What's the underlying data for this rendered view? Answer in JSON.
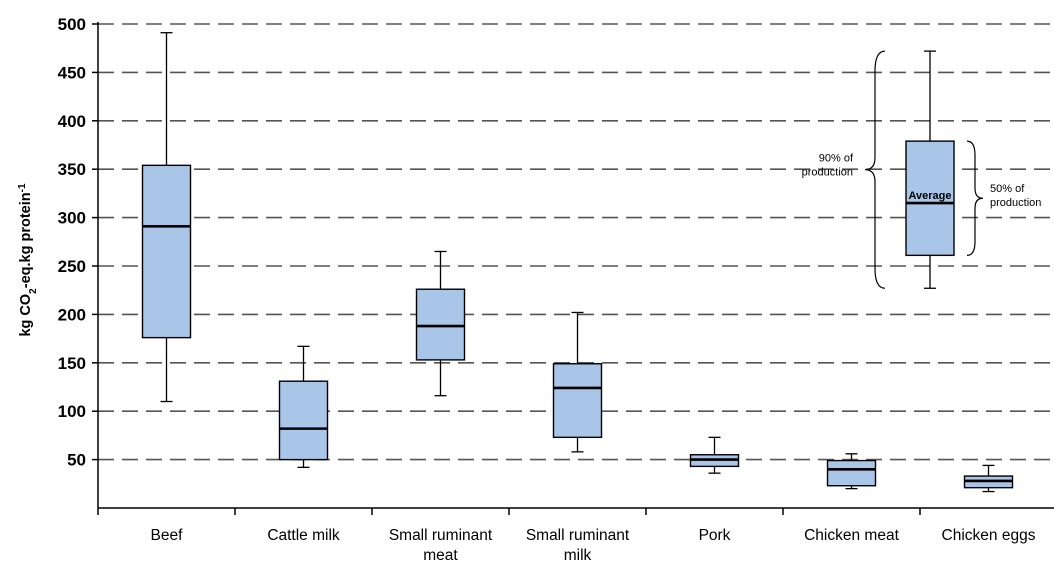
{
  "chart_data": {
    "type": "box",
    "ylabel": "kg CO2-eq.kg protein-1",
    "ylabel_parts": {
      "a": "kg CO",
      "sub": "2",
      "b": "-eq.kg protein",
      "sup": "-1"
    },
    "ylim": [
      0,
      500
    ],
    "yticks": [
      50,
      100,
      150,
      200,
      250,
      300,
      350,
      400,
      450,
      500
    ],
    "grid": "horizontal dashed",
    "categories": [
      [
        "Beef"
      ],
      [
        "Cattle milk"
      ],
      [
        "Small ruminant",
        "meat"
      ],
      [
        "Small ruminant",
        "milk"
      ],
      [
        "Pork"
      ],
      [
        "Chicken meat"
      ],
      [
        "Chicken eggs"
      ]
    ],
    "boxes": [
      {
        "low": 110,
        "q1": 176,
        "median": 291,
        "q3": 354,
        "high": 491
      },
      {
        "low": 42,
        "q1": 50,
        "median": 82,
        "q3": 131,
        "high": 167
      },
      {
        "low": 116,
        "q1": 153,
        "median": 188,
        "q3": 226,
        "high": 265
      },
      {
        "low": 58,
        "q1": 73,
        "median": 124,
        "q3": 149,
        "high": 202
      },
      {
        "low": 36,
        "q1": 43,
        "median": 50,
        "q3": 55,
        "high": 73
      },
      {
        "low": 20,
        "q1": 23,
        "median": 40,
        "q3": 49,
        "high": 56
      },
      {
        "low": 17,
        "q1": 21,
        "median": 28,
        "q3": 33,
        "high": 44
      }
    ],
    "legend": {
      "placement": "top-right",
      "example": {
        "low": 227,
        "q1": 261,
        "median": 315,
        "q3": 379,
        "high": 472
      },
      "average_label": "Average",
      "left_text": [
        "90% of",
        "production"
      ],
      "right_text": [
        "50% of",
        "production"
      ]
    },
    "colors": {
      "box_fill": "#a9c6e8",
      "stroke": "#000000",
      "grid": "#555555"
    }
  }
}
